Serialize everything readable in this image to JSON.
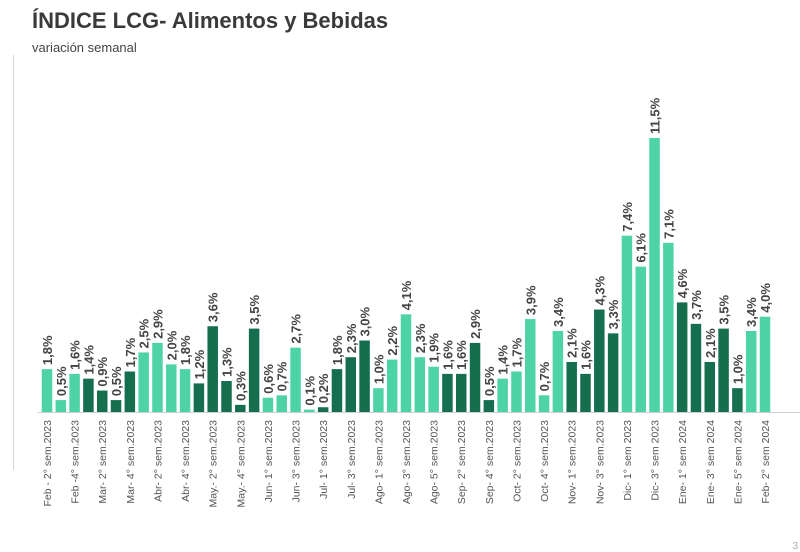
{
  "page_number": "3",
  "chart_data": {
    "type": "bar",
    "title": "ÍNDICE LCG- Alimentos y Bebidas",
    "subtitle": "variación semanal",
    "xlabel": "",
    "ylabel": "",
    "ylim": [
      0,
      12
    ],
    "grid": false,
    "legend": "none",
    "colors": {
      "light": "#4ed3a6",
      "dark": "#156e4e",
      "label": "#444444",
      "tick": "#555555",
      "axis": "#d0d0d0"
    },
    "categories": [
      "Feb - 2° sem.2023",
      "",
      "Feb -4° sem.2023",
      "",
      "Mar- 2° sem.2023",
      "",
      "Mar- 4° sem.2023",
      "",
      "Abr- 2° sem.2023",
      "",
      "Abr- 4° sem.2023",
      "",
      "May.- 2° sem.2023",
      "",
      "May.- 4° sem.2023",
      "",
      "Jun- 1° sem.2023",
      "",
      "Jun- 3° sem.2023",
      "",
      "Jul- 1° sem.2023",
      "",
      "Jul- 3° sem.2023",
      "",
      "Ago- 1° sem.2023",
      "",
      "Ago- 3° sem.2023",
      "",
      "Ago- 5° sem.2023",
      "",
      "Sep- 2° sem.2023",
      "",
      "Sep- 4° sem.2023",
      "",
      "Oct- 2° sem.2023",
      "",
      "Oct- 4° sem.2023",
      "",
      "Nov- 1° sem.2023",
      "",
      "Nov- 3° sem.2023",
      "",
      "Dic- 1° sem 2023",
      "",
      "Dic- 3° sem 2023",
      "",
      "Ene- 1° sem 2024",
      "",
      "Ene- 3° sem 2024",
      "",
      "Ene- 5° sem 2024",
      "",
      "Feb- 2° sem 2024"
    ],
    "values": [
      1.8,
      0.5,
      1.6,
      1.4,
      0.9,
      0.5,
      1.7,
      2.5,
      2.9,
      2.0,
      1.8,
      1.2,
      3.6,
      1.3,
      0.3,
      3.5,
      0.6,
      0.7,
      2.7,
      0.1,
      0.2,
      1.8,
      2.3,
      3.0,
      1.0,
      2.2,
      4.1,
      2.3,
      1.9,
      1.6,
      1.6,
      2.9,
      0.5,
      1.4,
      1.7,
      3.9,
      0.7,
      3.4,
      2.1,
      1.6,
      4.3,
      3.3,
      7.4,
      6.1,
      11.5,
      7.1,
      4.6,
      3.7,
      2.1,
      3.5,
      1.0,
      3.4,
      4.0
    ],
    "data_labels": [
      "1,8%",
      "0,5%",
      "1,6%",
      "1,4%",
      "0,9%",
      "0,5%",
      "1,7%",
      "2,5%",
      "2,9%",
      "2,0%",
      "1,8%",
      "1,2%",
      "3,6%",
      "1,3%",
      "0,3%",
      "3,5%",
      "0,6%",
      "0,7%",
      "2,7%",
      "0,1%",
      "0,2%",
      "1,8%",
      "2,3%",
      "3,0%",
      "1,0%",
      "2,2%",
      "4,1%",
      "2,3%",
      "1,9%",
      "1,6%",
      "1,6%",
      "2,9%",
      "0,5%",
      "1,4%",
      "1,7%",
      "3,9%",
      "0,7%",
      "3,4%",
      "2,1%",
      "1,6%",
      "4,3%",
      "3,3%",
      "7,4%",
      "6,1%",
      "11,5%",
      "7,1%",
      "4,6%",
      "3,7%",
      "2,1%",
      "3,5%",
      "1,0%",
      "3,4%",
      "4,0%"
    ],
    "shade": [
      "light",
      "light",
      "light",
      "dark",
      "dark",
      "dark",
      "dark",
      "light",
      "light",
      "light",
      "light",
      "dark",
      "dark",
      "dark",
      "dark",
      "dark",
      "light",
      "light",
      "light",
      "light",
      "dark",
      "dark",
      "dark",
      "dark",
      "light",
      "light",
      "light",
      "light",
      "light",
      "dark",
      "dark",
      "dark",
      "dark",
      "light",
      "light",
      "light",
      "light",
      "light",
      "dark",
      "dark",
      "dark",
      "dark",
      "light",
      "light",
      "light",
      "light",
      "dark",
      "dark",
      "dark",
      "dark",
      "dark",
      "light",
      "light"
    ]
  }
}
